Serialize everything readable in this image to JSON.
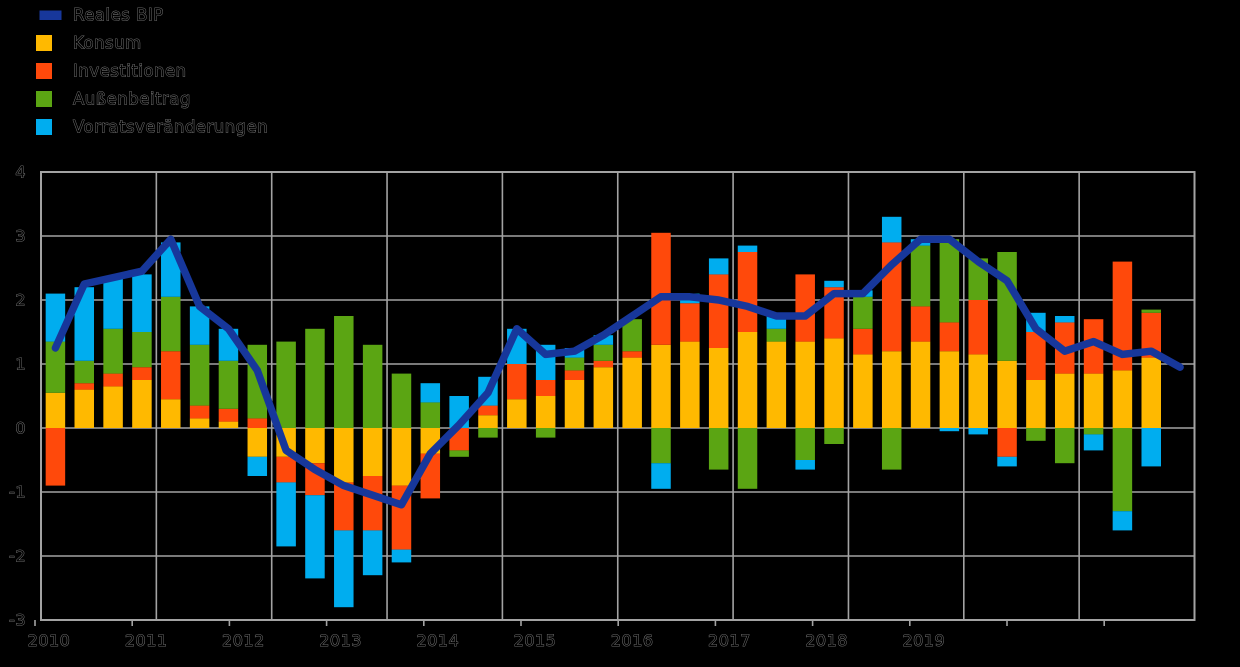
{
  "legend": {
    "items": [
      {
        "label": "Reales BIP",
        "color": "#17379B",
        "swatch": "line"
      },
      {
        "label": "Konsum",
        "color": "#FFB900",
        "swatch": "box"
      },
      {
        "label": "Investitionen",
        "color": "#FF490B",
        "swatch": "box"
      },
      {
        "label": "Außenbeitrag",
        "color": "#5BA513",
        "swatch": "box"
      },
      {
        "label": "Vorratsveränderungen",
        "color": "#00ADEF",
        "swatch": "box"
      }
    ]
  },
  "chart_data": {
    "type": "bar",
    "subtype": "stacked-bars-with-line-overlay",
    "title": "",
    "xlabel": "",
    "ylabel": "",
    "background_color": "#000000",
    "grid_color": "#A3A3A3",
    "text_outline_color": "#8a8a8a",
    "grid": true,
    "legend_position": "top-left",
    "ylim": [
      -3,
      4
    ],
    "y_ticks": [
      "4",
      "3",
      "2",
      "1",
      "0",
      "-1",
      "-2",
      "-3"
    ],
    "x_tick_labels": [
      "2010",
      "2011",
      "2012",
      "2013",
      "2014",
      "2015",
      "2016",
      "2017",
      "2018",
      "2019"
    ],
    "x": [
      "2010Q1",
      "2010Q2",
      "2010Q3",
      "2010Q4",
      "2011Q1",
      "2011Q2",
      "2011Q3",
      "2011Q4",
      "2012Q1",
      "2012Q2",
      "2012Q3",
      "2012Q4",
      "2013Q1",
      "2013Q2",
      "2013Q3",
      "2013Q4",
      "2014Q1",
      "2014Q2",
      "2014Q3",
      "2014Q4",
      "2015Q1",
      "2015Q2",
      "2015Q3",
      "2015Q4",
      "2016Q1",
      "2016Q2",
      "2016Q3",
      "2016Q4",
      "2017Q1",
      "2017Q2",
      "2017Q3",
      "2017Q4",
      "2018Q1",
      "2018Q2",
      "2018Q3",
      "2018Q4",
      "2019Q1",
      "2019Q2",
      "2019Q3",
      "2019Q4"
    ],
    "series": [
      {
        "name": "Konsum",
        "key": "konsum",
        "type": "bar",
        "color": "#FFB900",
        "values": [
          0.55,
          0.6,
          0.65,
          0.75,
          0.45,
          0.15,
          0.1,
          -0.45,
          -0.45,
          -0.55,
          -0.85,
          -0.75,
          -0.9,
          -0.4,
          0.0,
          0.2,
          0.45,
          0.5,
          0.75,
          0.95,
          1.1,
          1.3,
          1.35,
          1.25,
          1.5,
          1.35,
          1.35,
          1.4,
          1.15,
          1.2,
          1.35,
          1.2,
          1.15,
          1.05,
          0.75,
          0.85,
          0.85,
          0.9,
          1.1,
          null
        ]
      },
      {
        "name": "Investitionen",
        "key": "investitionen",
        "type": "bar",
        "color": "#FF490B",
        "values": [
          -0.9,
          0.1,
          0.2,
          0.2,
          0.75,
          0.2,
          0.2,
          0.15,
          -0.4,
          -0.5,
          -0.75,
          -0.85,
          -1.0,
          -0.7,
          -0.35,
          0.15,
          0.55,
          0.25,
          0.15,
          0.1,
          0.1,
          1.75,
          0.6,
          1.15,
          1.25,
          0.0,
          1.05,
          0.8,
          0.4,
          1.7,
          0.55,
          0.45,
          0.85,
          -0.45,
          0.75,
          0.8,
          0.85,
          1.7,
          0.7,
          null
        ]
      },
      {
        "name": "Außenbeitrag",
        "key": "aussenbeitrag",
        "type": "bar",
        "color": "#5BA513",
        "values": [
          0.8,
          0.35,
          0.7,
          0.55,
          0.85,
          0.95,
          0.75,
          1.15,
          1.35,
          1.55,
          1.75,
          1.3,
          0.85,
          0.4,
          -0.1,
          -0.15,
          0.0,
          -0.15,
          0.2,
          0.25,
          0.5,
          -0.55,
          0.0,
          -0.65,
          -0.95,
          0.2,
          -0.5,
          -0.25,
          0.5,
          -0.65,
          0.95,
          1.3,
          0.65,
          1.7,
          -0.2,
          -0.55,
          -0.1,
          -1.3,
          0.05,
          null
        ]
      },
      {
        "name": "Vorratsveränderungen",
        "key": "vorratsveraenderungen",
        "type": "bar",
        "color": "#00ADEF",
        "values": [
          0.75,
          1.15,
          0.8,
          0.9,
          0.85,
          0.6,
          0.5,
          -0.3,
          -1.0,
          -1.3,
          -1.2,
          -0.7,
          -0.2,
          0.3,
          0.5,
          0.45,
          0.55,
          0.55,
          0.15,
          0.15,
          0.0,
          -0.4,
          0.15,
          0.25,
          0.1,
          0.2,
          -0.15,
          0.1,
          0.1,
          0.4,
          0.1,
          -0.05,
          -0.1,
          -0.15,
          0.3,
          0.1,
          -0.25,
          -0.3,
          -0.6,
          null
        ]
      },
      {
        "name": "Reales BIP",
        "key": "reales-bip",
        "type": "line",
        "color": "#17379B",
        "values": [
          1.25,
          2.25,
          2.35,
          2.45,
          2.95,
          1.9,
          1.55,
          0.9,
          -0.35,
          -0.65,
          -0.9,
          -1.05,
          -1.2,
          -0.4,
          0.05,
          0.55,
          1.55,
          1.15,
          1.2,
          1.45,
          1.75,
          2.05,
          2.05,
          2.0,
          1.9,
          1.75,
          1.75,
          2.1,
          2.1,
          2.55,
          2.95,
          2.95,
          2.6,
          2.3,
          1.55,
          1.2,
          1.35,
          1.15,
          1.2,
          0.95
        ]
      }
    ]
  }
}
